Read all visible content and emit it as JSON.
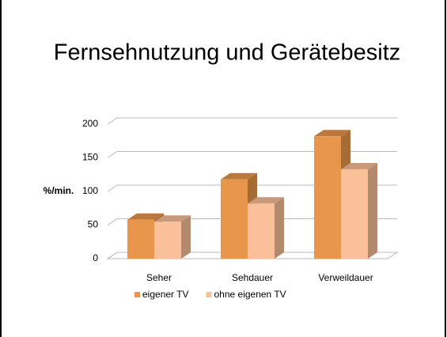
{
  "chart_data": {
    "type": "bar3d",
    "title": "Fernsehnutzung und Gerätebesitz",
    "y_label": "%/min.",
    "categories": [
      "Seher",
      "Sehdauer",
      "Verweildauer"
    ],
    "series": [
      {
        "name": "eigener TV",
        "color": "#E8964B",
        "values": [
          58,
          118,
          182
        ]
      },
      {
        "name": "ohne eigenen TV",
        "color": "#FAC09A",
        "values": [
          55,
          82,
          133
        ]
      }
    ],
    "ylim": [
      0,
      200
    ],
    "yticks": [
      0,
      50,
      100,
      150,
      200
    ],
    "grid": true,
    "legend": "bottom"
  }
}
